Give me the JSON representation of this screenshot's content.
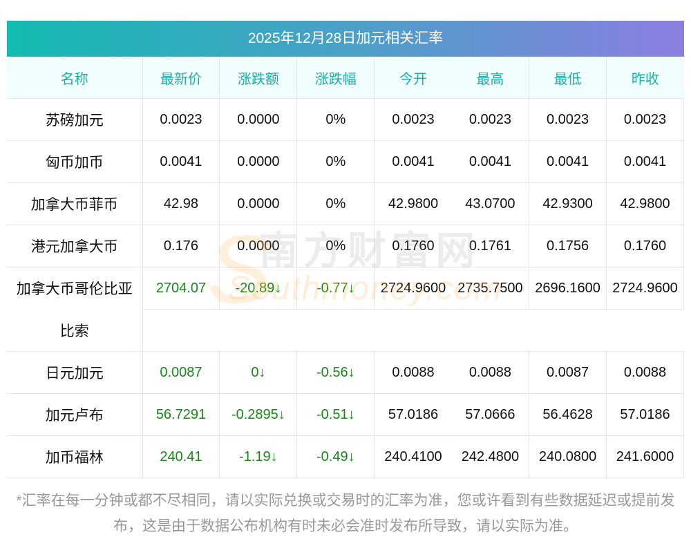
{
  "title": "2025年12月28日加元相关汇率",
  "columns": [
    "名称",
    "最新价",
    "涨跌额",
    "涨跌幅",
    "今开",
    "最高",
    "最低",
    "昨收"
  ],
  "rows": [
    {
      "name": "苏磅加元",
      "values": [
        "0.0023",
        "0.0000",
        "0%",
        "0.0023",
        "0.0023",
        "0.0023",
        "0.0023"
      ],
      "down": []
    },
    {
      "name": "匈币加币",
      "values": [
        "0.0041",
        "0.0000",
        "0%",
        "0.0041",
        "0.0041",
        "0.0041",
        "0.0041"
      ],
      "down": []
    },
    {
      "name": "加拿大币菲币",
      "values": [
        "42.98",
        "0.0000",
        "0%",
        "42.9800",
        "43.0700",
        "42.9300",
        "42.9800"
      ],
      "down": []
    },
    {
      "name": "港元加拿大币",
      "values": [
        "0.176",
        "0.0000",
        "0%",
        "0.1760",
        "0.1761",
        "0.1756",
        "0.1760"
      ],
      "down": []
    },
    {
      "name": "加拿大币哥伦比亚",
      "name2": "比索",
      "values": [
        "2704.07",
        "-20.89↓",
        "-0.77↓",
        "2724.9600",
        "2735.7500",
        "2696.1600",
        "2724.9600"
      ],
      "down": [
        0,
        1,
        2
      ]
    },
    {
      "name": "日元加元",
      "values": [
        "0.0087",
        "0↓",
        "-0.56↓",
        "0.0088",
        "0.0088",
        "0.0087",
        "0.0088"
      ],
      "down": [
        0,
        1,
        2
      ]
    },
    {
      "name": "加元卢布",
      "values": [
        "56.7291",
        "-0.2895↓",
        "-0.51↓",
        "57.0186",
        "57.0666",
        "56.4628",
        "57.0186"
      ],
      "down": [
        0,
        1,
        2
      ]
    },
    {
      "name": "加币福林",
      "values": [
        "240.41",
        "-1.19↓",
        "-0.49↓",
        "240.4100",
        "242.4800",
        "240.0800",
        "241.6000"
      ],
      "down": [
        0,
        1,
        2
      ]
    }
  ],
  "watermark": {
    "cn": "南方财富网",
    "en": "Southmoney.com"
  },
  "note": "*汇率在每一分钟或都不尽相同，请以实际兑换或交易时的汇率为准，您或许看到有些数据延迟或提前发布，这是由于数据公布机构有时未必会准时发布所导致，请以实际为准。",
  "colors": {
    "header_text": "#1aaea4",
    "down": "#168a16"
  }
}
